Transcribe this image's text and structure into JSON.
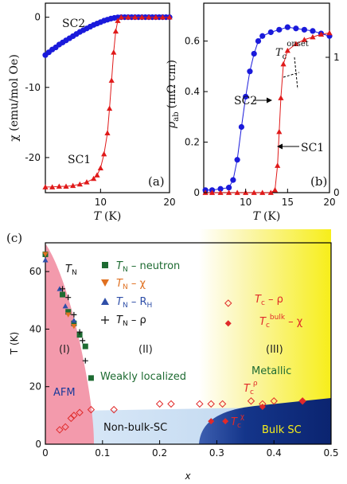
{
  "figure": {
    "panel_a_label": "(a)",
    "panel_b_label": "(b)",
    "panel_c_label": "(c)"
  },
  "chart_data": [
    {
      "panel": "a",
      "type": "scatter",
      "xlabel": "T (K)",
      "ylabel": "χ (emu/mol Oe)",
      "xlim": [
        2,
        20
      ],
      "ylim": [
        -25,
        2
      ],
      "xticks": [
        10,
        20
      ],
      "yticks": [
        0,
        -10,
        -20
      ],
      "series": [
        {
          "name": "SC2",
          "color": "#1a1adb",
          "marker": "circle",
          "points": [
            [
              2,
              -5.4
            ],
            [
              2.5,
              -5.0
            ],
            [
              3,
              -4.6
            ],
            [
              3.5,
              -4.3
            ],
            [
              4,
              -3.9
            ],
            [
              4.5,
              -3.6
            ],
            [
              5,
              -3.3
            ],
            [
              5.5,
              -3.0
            ],
            [
              6,
              -2.7
            ],
            [
              6.5,
              -2.4
            ],
            [
              7,
              -2.1
            ],
            [
              7.5,
              -1.85
            ],
            [
              8,
              -1.6
            ],
            [
              8.5,
              -1.35
            ],
            [
              9,
              -1.1
            ],
            [
              9.5,
              -0.9
            ],
            [
              10,
              -0.7
            ],
            [
              10.5,
              -0.5
            ],
            [
              11,
              -0.35
            ],
            [
              11.5,
              -0.2
            ],
            [
              12,
              -0.1
            ],
            [
              12.5,
              -0.03
            ],
            [
              13,
              0
            ],
            [
              13.5,
              0
            ],
            [
              14,
              0
            ],
            [
              14.5,
              0
            ],
            [
              15,
              0
            ],
            [
              15.5,
              0
            ],
            [
              16,
              0
            ],
            [
              16.5,
              0
            ],
            [
              17,
              0
            ],
            [
              17.5,
              0
            ],
            [
              18,
              0
            ],
            [
              18.5,
              0
            ],
            [
              19,
              0
            ],
            [
              19.5,
              0
            ],
            [
              20,
              0
            ]
          ]
        },
        {
          "name": "SC1",
          "color": "#e01a1a",
          "marker": "triangle",
          "points": [
            [
              2,
              -24.2
            ],
            [
              3,
              -24.2
            ],
            [
              4,
              -24.1
            ],
            [
              5,
              -24.1
            ],
            [
              6,
              -24.0
            ],
            [
              7,
              -23.8
            ],
            [
              8,
              -23.5
            ],
            [
              9,
              -23.0
            ],
            [
              9.5,
              -22.5
            ],
            [
              10,
              -21.5
            ],
            [
              10.5,
              -19.5
            ],
            [
              11,
              -16.5
            ],
            [
              11.3,
              -13.0
            ],
            [
              11.6,
              -9.0
            ],
            [
              11.9,
              -5.0
            ],
            [
              12.2,
              -2.0
            ],
            [
              12.5,
              -0.5
            ],
            [
              13,
              0
            ],
            [
              14,
              0
            ],
            [
              15,
              0
            ],
            [
              16,
              0
            ],
            [
              17,
              0
            ],
            [
              18,
              0
            ],
            [
              19,
              0
            ],
            [
              20,
              0
            ]
          ]
        }
      ],
      "annotations": [
        "SC2",
        "SC1"
      ]
    },
    {
      "panel": "b",
      "type": "scatter",
      "xlabel": "T (K)",
      "ylabel": "ρab (mΩ cm)",
      "xlim": [
        5,
        20
      ],
      "ylim": [
        0,
        0.75
      ],
      "ylim_right": [
        0,
        1.4
      ],
      "xticks": [
        10,
        15,
        20
      ],
      "yticks": [
        0,
        0.2,
        0.4,
        0.6
      ],
      "yticks_right": [
        0,
        1
      ],
      "series": [
        {
          "name": "SC2",
          "color": "#1a1adb",
          "marker": "circle",
          "axis": "left",
          "points": [
            [
              5.2,
              0.01
            ],
            [
              6,
              0.01
            ],
            [
              7,
              0.015
            ],
            [
              8,
              0.02
            ],
            [
              8.5,
              0.05
            ],
            [
              9,
              0.13
            ],
            [
              9.5,
              0.26
            ],
            [
              10,
              0.38
            ],
            [
              10.5,
              0.48
            ],
            [
              11,
              0.55
            ],
            [
              11.5,
              0.6
            ],
            [
              12,
              0.62
            ],
            [
              13,
              0.635
            ],
            [
              14,
              0.645
            ],
            [
              15,
              0.655
            ],
            [
              16,
              0.65
            ],
            [
              17,
              0.645
            ],
            [
              18,
              0.64
            ],
            [
              19,
              0.63
            ],
            [
              20,
              0.62
            ]
          ]
        },
        {
          "name": "SC1",
          "color": "#e01a1a",
          "marker": "triangle",
          "axis": "right",
          "points": [
            [
              5.2,
              0
            ],
            [
              6,
              0
            ],
            [
              7,
              0
            ],
            [
              8,
              0
            ],
            [
              9,
              0
            ],
            [
              10,
              0
            ],
            [
              11,
              0
            ],
            [
              12,
              0
            ],
            [
              13,
              0
            ],
            [
              13.5,
              0.02
            ],
            [
              13.8,
              0.2
            ],
            [
              14,
              0.45
            ],
            [
              14.2,
              0.7
            ],
            [
              14.5,
              0.95
            ],
            [
              15,
              1.05
            ],
            [
              16,
              1.1
            ],
            [
              17,
              1.13
            ],
            [
              18,
              1.15
            ],
            [
              19,
              1.17
            ],
            [
              20,
              1.18
            ]
          ]
        }
      ],
      "annotations": [
        "SC2",
        "SC1",
        "T_c onset"
      ]
    },
    {
      "panel": "c",
      "type": "scatter",
      "xlabel": "x",
      "ylabel": "T (K)",
      "xlim": [
        0,
        0.5
      ],
      "ylim": [
        0,
        70
      ],
      "xticks": [
        0,
        0.1,
        0.2,
        0.3,
        0.4,
        0.5
      ],
      "yticks": [
        0,
        20,
        40,
        60
      ],
      "legend": [
        "T_N – neutron",
        "T_N – χ",
        "T_N – R_H",
        "T_N – ρ"
      ],
      "series": [
        {
          "name": "T_N – neutron",
          "color": "#1e6b32",
          "marker": "square",
          "points": [
            [
              0,
              66
            ],
            [
              0.03,
              52
            ],
            [
              0.04,
              46
            ],
            [
              0.05,
              42
            ],
            [
              0.06,
              38
            ],
            [
              0.07,
              34
            ],
            [
              0.08,
              23
            ]
          ]
        },
        {
          "name": "T_N – χ",
          "color": "#e07020",
          "marker": "triangle-down",
          "points": [
            [
              0,
              66
            ],
            [
              0.04,
              45
            ],
            [
              0.05,
              41
            ]
          ]
        },
        {
          "name": "T_N – R_H",
          "color": "#2f4fa8",
          "marker": "triangle",
          "points": [
            [
              0,
              64
            ],
            [
              0.025,
              54
            ],
            [
              0.035,
              48
            ],
            [
              0.05,
              43
            ]
          ]
        },
        {
          "name": "T_N – ρ",
          "color": "#111111",
          "marker": "plus",
          "points": [
            [
              0.03,
              54
            ],
            [
              0.04,
              51
            ],
            [
              0.05,
              45
            ],
            [
              0.06,
              39
            ],
            [
              0.065,
              36
            ],
            [
              0.07,
              29
            ]
          ]
        },
        {
          "name": "T_c – ρ",
          "color": "#e02a2a",
          "marker": "diamond-open",
          "points": [
            [
              0.025,
              5
            ],
            [
              0.035,
              6
            ],
            [
              0.045,
              9
            ],
            [
              0.05,
              10
            ],
            [
              0.06,
              11
            ],
            [
              0.08,
              12
            ],
            [
              0.12,
              12
            ],
            [
              0.2,
              14
            ],
            [
              0.22,
              14
            ],
            [
              0.27,
              14
            ],
            [
              0.29,
              14
            ],
            [
              0.31,
              14
            ],
            [
              0.32,
              49
            ],
            [
              0.36,
              15
            ],
            [
              0.38,
              14
            ],
            [
              0.4,
              15
            ],
            [
              0.45,
              15
            ]
          ]
        },
        {
          "name": "T_c bulk – χ",
          "color": "#e02a2a",
          "marker": "diamond-filled",
          "points": [
            [
              0.29,
              8
            ],
            [
              0.315,
              8
            ],
            [
              0.32,
              42
            ],
            [
              0.38,
              13
            ],
            [
              0.45,
              15
            ]
          ]
        }
      ],
      "annotations": [
        "T_N",
        "(I)",
        "(II)",
        "(III)",
        "AFM",
        "Weakly localized",
        "Metallic",
        "Non-bulk-SC",
        "Bulk SC",
        "T_c – ρ",
        "T_c bulk – χ",
        "T_c^ρ",
        "T_c^χ"
      ]
    }
  ],
  "text": {
    "a_xlabel_T": "T",
    "a_xlabel_unit": "(K)",
    "b_xlabel_T": "T",
    "b_xlabel_unit": "(K)",
    "c_xlabel": "x",
    "c_ylabel": "T (K)",
    "a_ylabel": "χ (emu/mol Oe)",
    "b_ylabel_unit": "(mΩ cm)",
    "b_ylabel_rho": "ρ",
    "b_ylabel_sub": "ab",
    "a_sc2": "SC2",
    "a_sc1": "SC1",
    "b_sc2": "SC2",
    "b_sc1": "SC1",
    "b_tc": "T",
    "b_tc_sub": "c",
    "b_tc_sup": "onset",
    "c_tn": "T",
    "c_tn_sub": "N",
    "c_region1": "(I)",
    "c_region2": "(II)",
    "c_region3": "(III)",
    "c_afm": "AFM",
    "c_weak": "Weakly localized",
    "c_metallic": "Metallic",
    "c_nonbulk": "Non-bulk-SC",
    "c_bulk": "Bulk SC",
    "c_leg1_T": "T",
    "c_leg1_sub": "N",
    "c_leg1_rest": " – neutron",
    "c_leg2_T": "T",
    "c_leg2_sub": "N",
    "c_leg2_rest": " – χ",
    "c_leg3_T": "T",
    "c_leg3_sub": "N",
    "c_leg3_rest": " – R",
    "c_leg3_rsub": "H",
    "c_leg4_T": "T",
    "c_leg4_sub": "N",
    "c_leg4_rest": " – ρ",
    "c_tc_rho_T": "T",
    "c_tc_rho_sub": "c",
    "c_tc_rho_rest": " – ρ",
    "c_tc_bulk_T": "T",
    "c_tc_bulk_sub": "c",
    "c_tc_bulk_sup": "bulk",
    "c_tc_bulk_rest": " – χ",
    "c_tcrho_T": "T",
    "c_tcrho_sub": "c",
    "c_tcrho_sup": "ρ",
    "c_tcchi_T": "T",
    "c_tcchi_sub": "c",
    "c_tcchi_sup": "χ"
  },
  "colors": {
    "afm_region": "#f39aac",
    "nonbulk_region": "#cde2f5",
    "bulk_region": "#0d2b7a",
    "metallic_region": "#f7ee1a"
  }
}
